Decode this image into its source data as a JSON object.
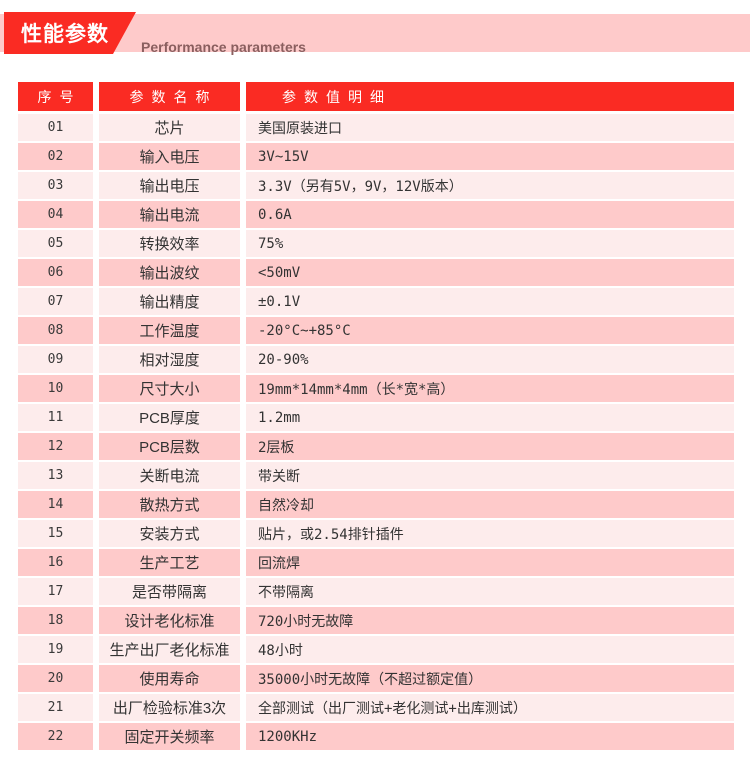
{
  "colors": {
    "accent-red": "#fa2b23",
    "banner-pink": "#fecaca",
    "row-light": "#fdecec",
    "row-dark": "#fecaca",
    "sub-text": "#8a5f5f"
  },
  "banner": {
    "title": "性能参数",
    "subtitle": "Performance parameters"
  },
  "table": {
    "headers": [
      "序号",
      "参数名称",
      "参数值明细"
    ],
    "rows": [
      {
        "no": "01",
        "name": "芯片",
        "value": "美国原装进口"
      },
      {
        "no": "02",
        "name": "输入电压",
        "value": "3V~15V"
      },
      {
        "no": "03",
        "name": "输出电压",
        "value": "3.3V（另有5V，9V，12V版本）"
      },
      {
        "no": "04",
        "name": "输出电流",
        "value": "0.6A"
      },
      {
        "no": "05",
        "name": "转换效率",
        "value": "75%"
      },
      {
        "no": "06",
        "name": "输出波纹",
        "value": "<50mV"
      },
      {
        "no": "07",
        "name": "输出精度",
        "value": "±0.1V"
      },
      {
        "no": "08",
        "name": "工作温度",
        "value": "-20°C~+85°C"
      },
      {
        "no": "09",
        "name": "相对湿度",
        "value": "20-90%"
      },
      {
        "no": "10",
        "name": "尺寸大小",
        "value": "19mm*14mm*4mm（长*宽*高）"
      },
      {
        "no": "11",
        "name": "PCB厚度",
        "value": "1.2mm"
      },
      {
        "no": "12",
        "name": "PCB层数",
        "value": "2层板"
      },
      {
        "no": "13",
        "name": "关断电流",
        "value": "带关断"
      },
      {
        "no": "14",
        "name": "散热方式",
        "value": "自然冷却"
      },
      {
        "no": "15",
        "name": "安装方式",
        "value": "贴片，或2.54排针插件"
      },
      {
        "no": "16",
        "name": "生产工艺",
        "value": "回流焊"
      },
      {
        "no": "17",
        "name": "是否带隔离",
        "value": "不带隔离"
      },
      {
        "no": "18",
        "name": "设计老化标准",
        "value": "720小时无故障"
      },
      {
        "no": "19",
        "name": "生产出厂老化标准",
        "value": "48小时"
      },
      {
        "no": "20",
        "name": "使用寿命",
        "value": "35000小时无故障（不超过额定值）"
      },
      {
        "no": "21",
        "name": "出厂检验标准3次",
        "value": "全部测试（出厂测试+老化测试+出库测试）"
      },
      {
        "no": "22",
        "name": "固定开关频率",
        "value": "1200KHz"
      }
    ]
  }
}
